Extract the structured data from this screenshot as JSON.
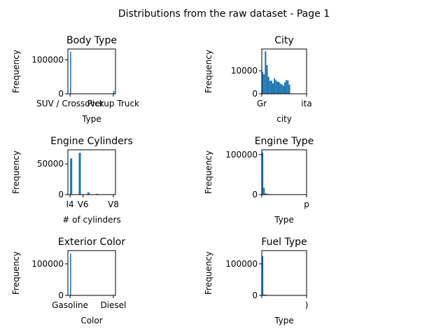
{
  "suptitle": "Distributions from the raw dataset - Page 1",
  "colors": {
    "bar": "#1f77b4"
  },
  "chart_data": [
    {
      "type": "bar",
      "title": "Body Type",
      "xlabel": "Type",
      "ylabel": "Frequency",
      "ylim": [
        0,
        132000
      ],
      "yticks": [
        0,
        100000
      ],
      "xlim": [
        -0.5,
        10.5
      ],
      "bin_width": 0.25,
      "xtick_labels": [
        {
          "pos": 0,
          "label": "SUV / Crossover"
        },
        {
          "pos": 10,
          "label": "Pickup Truck"
        }
      ],
      "bars": [
        {
          "x": 0,
          "y": 124000
        },
        {
          "x": 10,
          "y": 9000
        }
      ]
    },
    {
      "type": "bar",
      "title": "City",
      "xlabel": "city",
      "ylabel": "Frequency",
      "ylim": [
        0,
        19500
      ],
      "yticks": [
        0,
        10000
      ],
      "xlim": [
        0,
        30
      ],
      "bin_width": 1,
      "xtick_labels": [
        {
          "pos": 0,
          "label": "Gr"
        },
        {
          "pos": 30,
          "label": "ita"
        }
      ],
      "bars": [
        {
          "x": 0,
          "y": 9500
        },
        {
          "x": 1,
          "y": 8500
        },
        {
          "x": 2,
          "y": 18500
        },
        {
          "x": 3,
          "y": 12500
        },
        {
          "x": 4,
          "y": 7500
        },
        {
          "x": 5,
          "y": 5700
        },
        {
          "x": 6,
          "y": 5700
        },
        {
          "x": 7,
          "y": 4500
        },
        {
          "x": 8,
          "y": 6800
        },
        {
          "x": 9,
          "y": 5900
        },
        {
          "x": 10,
          "y": 5200
        },
        {
          "x": 11,
          "y": 5200
        },
        {
          "x": 12,
          "y": 4400
        },
        {
          "x": 13,
          "y": 4100
        },
        {
          "x": 14,
          "y": 3500
        },
        {
          "x": 15,
          "y": 5000
        },
        {
          "x": 16,
          "y": 6000
        },
        {
          "x": 17,
          "y": 5800
        },
        {
          "x": 18,
          "y": 4000
        }
      ]
    },
    {
      "type": "bar",
      "title": "Engine Cylinders",
      "xlabel": "# of cylinders",
      "ylabel": "Frequency",
      "ylim": [
        0,
        73000
      ],
      "yticks": [
        0,
        50000
      ],
      "xlim": [
        -0.5,
        10.5
      ],
      "bin_width": 0.5,
      "xtick_labels": [
        {
          "pos": 0,
          "label": "I4"
        },
        {
          "pos": 3,
          "label": "V6"
        },
        {
          "pos": 10,
          "label": "V8"
        }
      ],
      "bars": [
        {
          "x": 0,
          "y": 59000
        },
        {
          "x": 2,
          "y": 68000
        },
        {
          "x": 4,
          "y": 3500
        },
        {
          "x": 6,
          "y": 1200
        },
        {
          "x": 8,
          "y": 600
        },
        {
          "x": 10,
          "y": 300
        }
      ]
    },
    {
      "type": "bar",
      "title": "Engine Type",
      "xlabel": "Type",
      "ylabel": "Frequency",
      "ylim": [
        0,
        112000
      ],
      "yticks": [
        0,
        100000
      ],
      "xlim": [
        0,
        30
      ],
      "bin_width": 1,
      "xtick_labels": [
        {
          "pos": 0,
          "label": ""
        },
        {
          "pos": 30,
          "label": "p"
        }
      ],
      "bars": [
        {
          "x": 0,
          "y": 105000
        },
        {
          "x": 1,
          "y": 17000
        },
        {
          "x": 2,
          "y": 3200
        },
        {
          "x": 3,
          "y": 1800
        },
        {
          "x": 4,
          "y": 1500
        },
        {
          "x": 5,
          "y": 1200
        },
        {
          "x": 6,
          "y": 900
        },
        {
          "x": 7,
          "y": 700
        },
        {
          "x": 8,
          "y": 500
        },
        {
          "x": 9,
          "y": 400
        },
        {
          "x": 10,
          "y": 300
        },
        {
          "x": 11,
          "y": 200
        }
      ]
    },
    {
      "type": "bar",
      "title": "Exterior Color",
      "xlabel": "Color",
      "ylabel": "Frequency",
      "ylim": [
        0,
        142000
      ],
      "yticks": [
        0,
        100000
      ],
      "xlim": [
        -0.5,
        10.5
      ],
      "bin_width": 0.25,
      "xtick_labels": [
        {
          "pos": 0,
          "label": "Gasoline"
        },
        {
          "pos": 10,
          "label": "Diesel"
        }
      ],
      "bars": [
        {
          "x": 0,
          "y": 133000
        },
        {
          "x": 5,
          "y": 900
        },
        {
          "x": 10,
          "y": 600
        }
      ]
    },
    {
      "type": "bar",
      "title": "Fuel Type",
      "xlabel": "Type",
      "ylabel": "Frequency",
      "ylim": [
        0,
        142000
      ],
      "yticks": [
        0,
        100000
      ],
      "xlim": [
        0,
        30
      ],
      "bin_width": 1,
      "xtick_labels": [
        {
          "pos": 0,
          "label": ""
        },
        {
          "pos": 30,
          "label": ")"
        }
      ],
      "bars": [
        {
          "x": 0,
          "y": 125000
        },
        {
          "x": 1,
          "y": 3200
        },
        {
          "x": 2,
          "y": 2000
        },
        {
          "x": 3,
          "y": 1500
        },
        {
          "x": 4,
          "y": 1200
        },
        {
          "x": 5,
          "y": 1000
        },
        {
          "x": 6,
          "y": 800
        },
        {
          "x": 7,
          "y": 700
        },
        {
          "x": 8,
          "y": 600
        },
        {
          "x": 9,
          "y": 500
        }
      ]
    }
  ]
}
